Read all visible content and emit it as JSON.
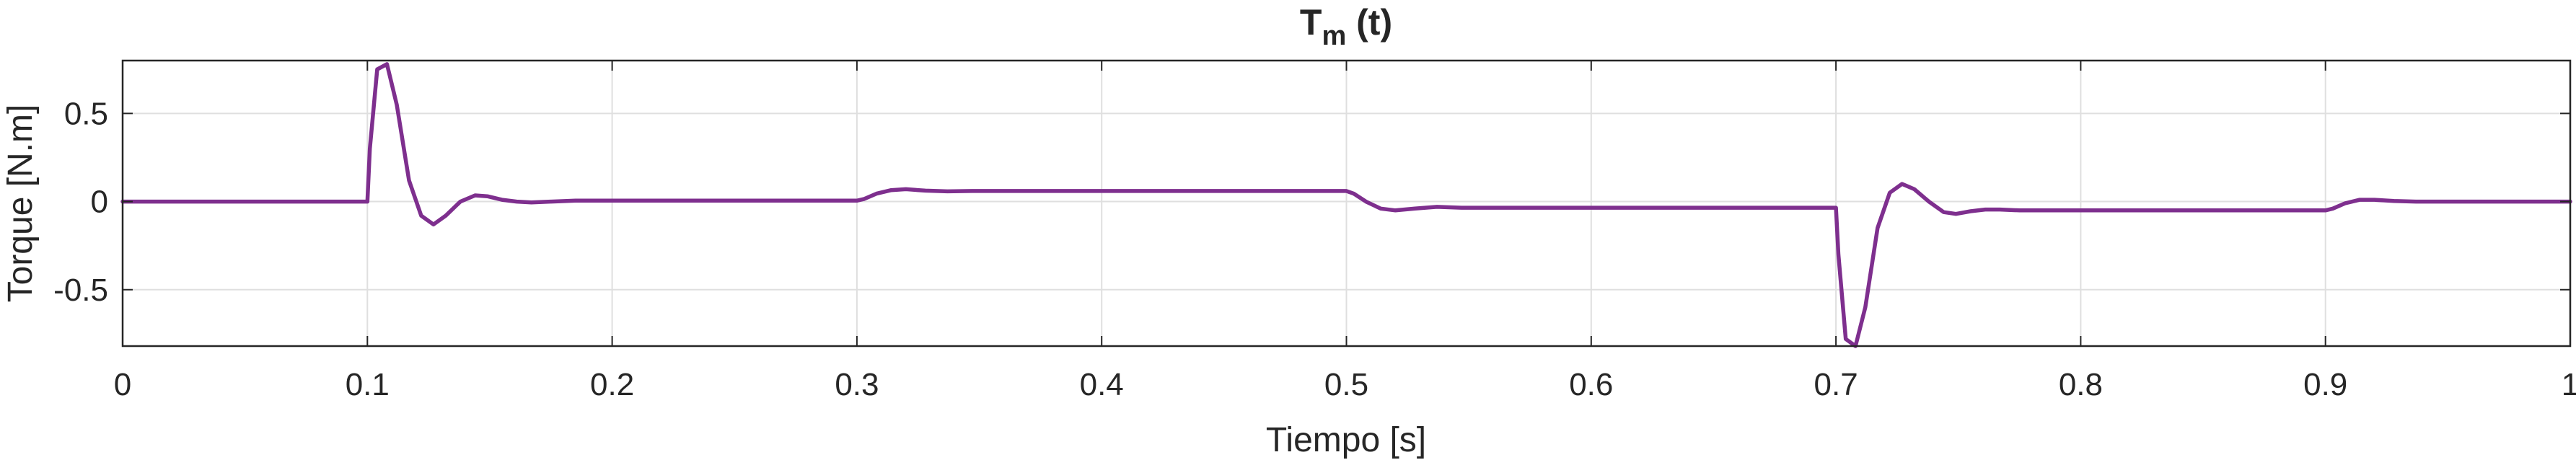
{
  "chart_data": {
    "type": "line",
    "title": {
      "base": "T",
      "subscript": "m",
      "suffix": " (t)"
    },
    "xlabel": "Tiempo [s]",
    "ylabel": "Torque [N.m]",
    "xlim": [
      0,
      1
    ],
    "ylim": [
      -0.82,
      0.8
    ],
    "grid": true,
    "xticks": [
      0,
      0.1,
      0.2,
      0.3,
      0.4,
      0.5,
      0.6,
      0.7,
      0.8,
      0.9,
      1
    ],
    "xtick_labels": [
      "0",
      "0.1",
      "0.2",
      "0.3",
      "0.4",
      "0.5",
      "0.6",
      "0.7",
      "0.8",
      "0.9",
      "1"
    ],
    "yticks": [
      0.5,
      0,
      -0.5
    ],
    "ytick_labels": [
      "0.5",
      "0",
      "-0.5"
    ],
    "series": [
      {
        "color": "#7e2f8e",
        "x": [
          0,
          0.1,
          0.101,
          0.104,
          0.108,
          0.112,
          0.117,
          0.122,
          0.127,
          0.132,
          0.138,
          0.144,
          0.149,
          0.155,
          0.161,
          0.167,
          0.175,
          0.185,
          0.2,
          0.3,
          0.303,
          0.308,
          0.314,
          0.32,
          0.328,
          0.337,
          0.347,
          0.36,
          0.4,
          0.5,
          0.503,
          0.508,
          0.514,
          0.52,
          0.528,
          0.537,
          0.547,
          0.56,
          0.6,
          0.7,
          0.701,
          0.704,
          0.708,
          0.712,
          0.717,
          0.722,
          0.727,
          0.732,
          0.738,
          0.744,
          0.749,
          0.755,
          0.761,
          0.767,
          0.775,
          0.785,
          0.8,
          0.9,
          0.903,
          0.908,
          0.914,
          0.92,
          0.928,
          0.937,
          0.947,
          0.96,
          1.0
        ],
        "y": [
          0,
          0,
          0.3,
          0.75,
          0.78,
          0.55,
          0.12,
          -0.08,
          -0.13,
          -0.08,
          0.0,
          0.035,
          0.03,
          0.01,
          0.0,
          -0.005,
          0.0,
          0.005,
          0.005,
          0.005,
          0.015,
          0.045,
          0.065,
          0.07,
          0.062,
          0.058,
          0.06,
          0.06,
          0.06,
          0.06,
          0.045,
          0.0,
          -0.04,
          -0.05,
          -0.04,
          -0.03,
          -0.035,
          -0.035,
          -0.035,
          -0.035,
          -0.3,
          -0.78,
          -0.82,
          -0.6,
          -0.15,
          0.05,
          0.1,
          0.07,
          0.0,
          -0.06,
          -0.07,
          -0.055,
          -0.045,
          -0.045,
          -0.05,
          -0.05,
          -0.05,
          -0.05,
          -0.04,
          -0.01,
          0.01,
          0.01,
          0.003,
          0.0,
          0.0,
          0.0,
          0.0
        ]
      }
    ]
  }
}
